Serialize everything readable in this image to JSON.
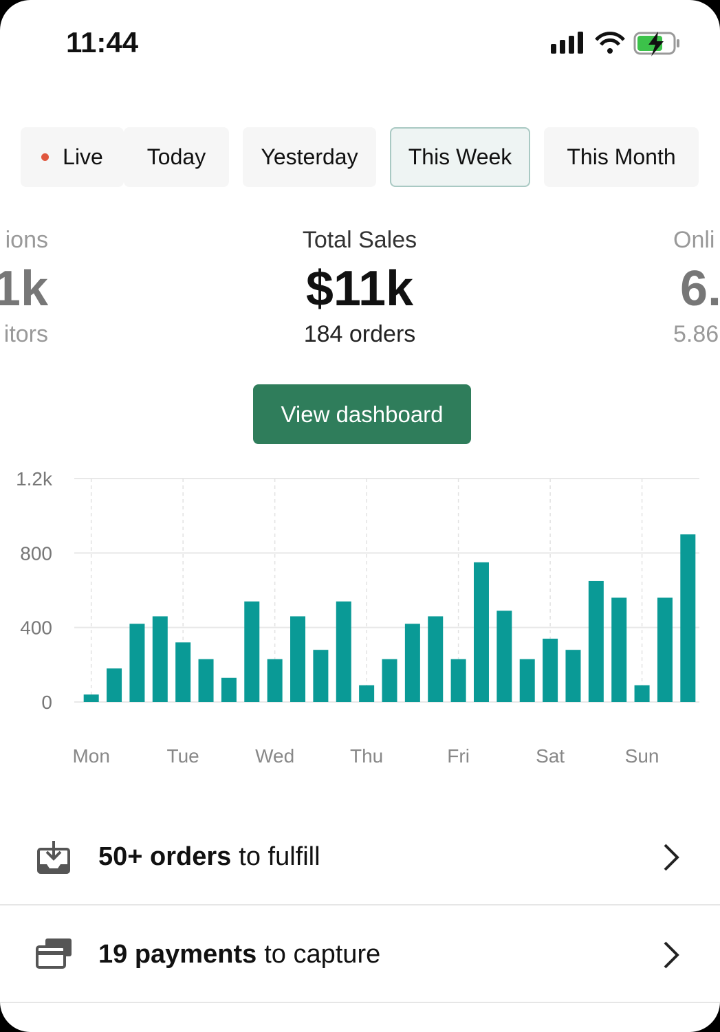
{
  "status_bar": {
    "time": "11:44"
  },
  "tabs": [
    {
      "label": "Live",
      "live": true
    },
    {
      "label": "Today"
    },
    {
      "label": "Yesterday"
    },
    {
      "label": "This Week",
      "selected": true
    },
    {
      "label": "This Month"
    }
  ],
  "metrics": {
    "left": {
      "label": "ions",
      "value": "1k",
      "sub": "itors"
    },
    "center": {
      "label": "Total Sales",
      "value": "$11k",
      "sub": "184 orders"
    },
    "right": {
      "label": "Onli",
      "value": "6.",
      "sub": "5.86"
    }
  },
  "button": "View dashboard",
  "chart_data": {
    "type": "bar",
    "categories": [
      "Mon",
      null,
      null,
      null,
      "Tue",
      null,
      null,
      null,
      "Wed",
      null,
      null,
      null,
      "Thu",
      null,
      null,
      null,
      "Fri",
      null,
      null,
      null,
      "Sat",
      null,
      null,
      null,
      "Sun",
      null,
      null
    ],
    "values": [
      40,
      180,
      420,
      460,
      320,
      230,
      130,
      540,
      230,
      460,
      280,
      540,
      90,
      230,
      420,
      460,
      230,
      750,
      490,
      230,
      340,
      280,
      650,
      560,
      90,
      560,
      900
    ],
    "color": "#0a9a96",
    "ylim": [
      0,
      1200
    ],
    "yticks": [
      0,
      400,
      800,
      {
        "value": 1200,
        "label": "1.2k"
      }
    ],
    "grid": true
  },
  "tasks": [
    {
      "bold": "50+ orders",
      "text": "to fulfill",
      "icon": "inbox"
    },
    {
      "bold": "19 payments",
      "text": "to capture",
      "icon": "card"
    }
  ]
}
